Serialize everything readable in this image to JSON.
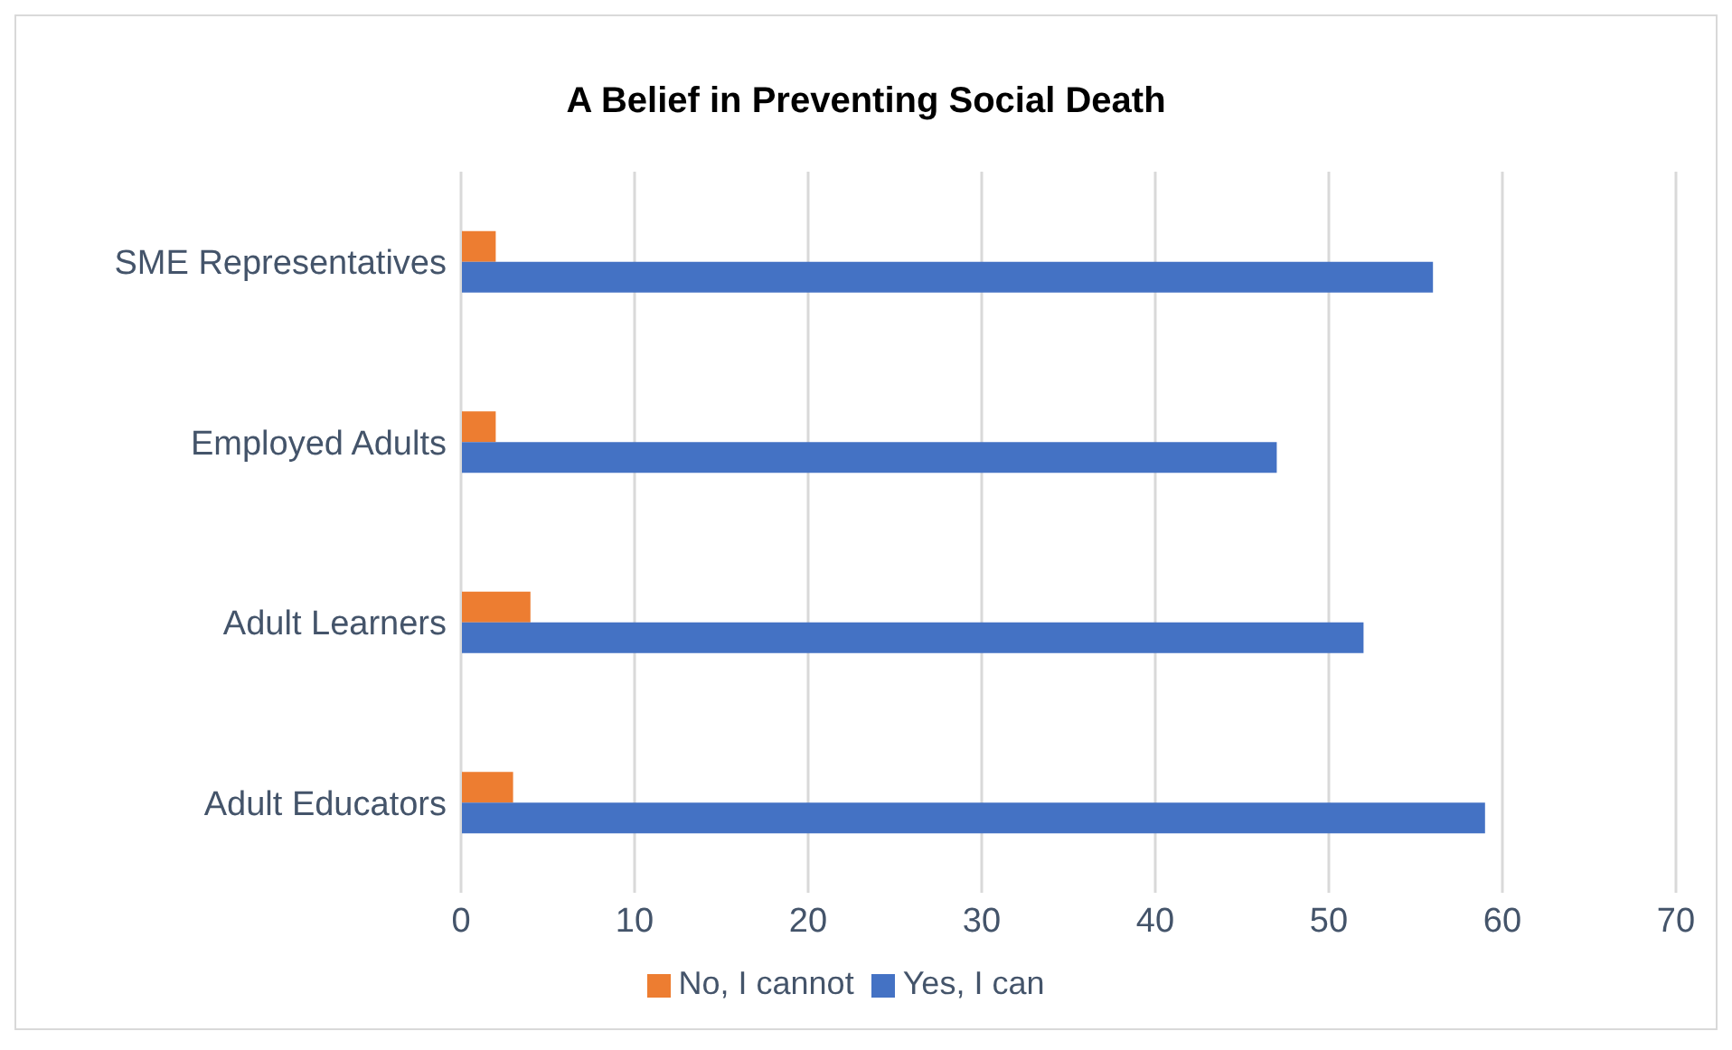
{
  "chart_data": {
    "type": "bar",
    "orientation": "horizontal",
    "title": "A Belief in Preventing Social Death",
    "categories": [
      "SME Representatives",
      "Employed Adults",
      "Adult Learners",
      "Adult Educators"
    ],
    "series": [
      {
        "name": "No, I cannot",
        "color": "#ed7d31",
        "values": [
          2,
          2,
          4,
          3
        ]
      },
      {
        "name": "Yes, I can",
        "color": "#4472c4",
        "values": [
          56,
          47,
          52,
          59
        ]
      }
    ],
    "xlim": [
      0,
      70
    ],
    "xticks": [
      0,
      10,
      20,
      30,
      40,
      50,
      60,
      70
    ],
    "grid": "x",
    "legend": "bottom"
  }
}
